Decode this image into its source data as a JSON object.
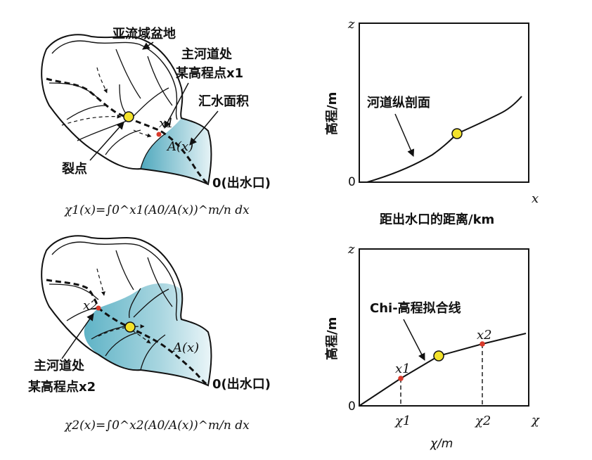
{
  "top_left": {
    "labels": {
      "subbasin": "亚流域盆地",
      "main_channel_point_l1": "主河道处",
      "main_channel_point_l2": "某高程点x1",
      "drainage_area": "汇水面积",
      "x1": "x1",
      "A": "A(x)",
      "knickpoint": "裂点",
      "outlet": "0(出水口)"
    },
    "formula": "χ1(x)=∫0^x1(A0/A(x))^m/n dx"
  },
  "bottom_left": {
    "labels": {
      "x2": "x2",
      "A": "A(x)",
      "main_channel_point_l1": "主河道处",
      "main_channel_point_l2": "某高程点x2",
      "outlet": "0(出水口)"
    },
    "formula": "χ2(x)=∫0^x2(A0/A(x))^m/n dx"
  },
  "top_right": {
    "z": "z",
    "zero": "0",
    "x": "x",
    "ylabel": "高程/m",
    "xlabel": "距出水口的距离/km",
    "annotation": "河道纵剖面"
  },
  "bottom_right": {
    "z": "z",
    "zero": "0",
    "chi": "χ",
    "chi1": "χ1",
    "chi2": "χ2",
    "x1": "x1",
    "x2": "x2",
    "ylabel": "高程/m",
    "xlabel": "χ/m",
    "annotation": "Chi-高程拟合线"
  },
  "colors": {
    "basin_fill": "#5fb3c6",
    "knickpoint": "#f3e22a",
    "point": "#d93a2b"
  }
}
